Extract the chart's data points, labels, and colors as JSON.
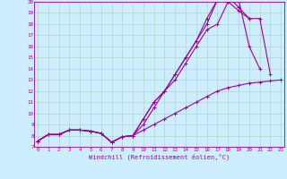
{
  "xlabel": "Windchill (Refroidissement éolien,°C)",
  "background_color": "#cceeff",
  "line_color": "#990099",
  "grid_color": "#aaccbb",
  "xmin": 0,
  "xmax": 23,
  "ymin": 7,
  "ymax": 20,
  "series": [
    {
      "x": [
        0,
        1,
        2,
        3,
        4,
        5,
        6,
        7,
        8,
        9,
        10,
        11,
        12,
        13,
        14,
        15,
        16,
        17,
        18,
        19,
        20,
        21,
        22,
        23
      ],
      "y": [
        7.5,
        8.1,
        8.1,
        8.5,
        8.5,
        8.4,
        8.2,
        7.4,
        7.9,
        8.0,
        8.5,
        9.0,
        9.5,
        10.0,
        10.5,
        11.0,
        11.5,
        12.0,
        12.3,
        12.5,
        12.7,
        12.8,
        12.9,
        13.0
      ]
    },
    {
      "x": [
        0,
        1,
        2,
        3,
        4,
        5,
        6,
        7,
        8,
        9,
        10,
        11,
        12,
        13,
        14,
        15,
        16,
        17,
        18,
        19,
        20,
        21
      ],
      "y": [
        7.5,
        8.1,
        8.1,
        8.5,
        8.5,
        8.4,
        8.2,
        7.4,
        7.9,
        8.0,
        9.5,
        11.0,
        12.0,
        13.0,
        14.5,
        16.0,
        17.5,
        18.0,
        20.0,
        20.2,
        16.0,
        14.0
      ]
    },
    {
      "x": [
        0,
        1,
        2,
        3,
        4,
        5,
        6,
        7,
        8,
        9,
        10,
        11,
        12,
        13,
        14,
        15,
        16,
        17,
        18,
        19,
        20
      ],
      "y": [
        7.5,
        8.1,
        8.1,
        8.5,
        8.5,
        8.4,
        8.2,
        7.4,
        7.9,
        8.0,
        9.0,
        10.5,
        12.0,
        13.5,
        15.0,
        16.5,
        18.5,
        20.2,
        20.5,
        19.5,
        18.5
      ]
    },
    {
      "x": [
        0,
        1,
        2,
        3,
        4,
        5,
        6,
        7,
        8,
        9,
        10,
        11,
        12,
        13,
        14,
        15,
        16,
        17,
        18,
        19,
        20,
        21,
        22
      ],
      "y": [
        7.5,
        8.1,
        8.1,
        8.5,
        8.5,
        8.4,
        8.2,
        7.4,
        7.9,
        8.0,
        9.5,
        11.0,
        12.0,
        13.5,
        15.0,
        16.5,
        18.0,
        20.2,
        20.0,
        19.2,
        18.5,
        18.5,
        13.5
      ]
    }
  ]
}
